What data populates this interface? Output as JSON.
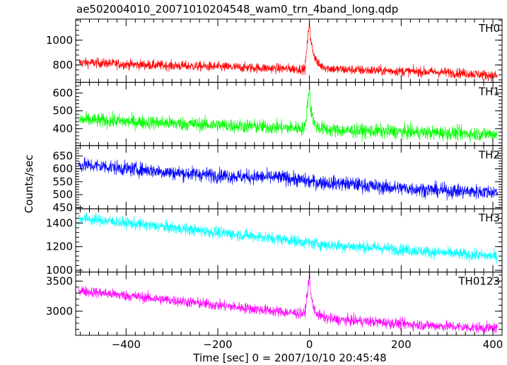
{
  "chart_data": {
    "type": "line",
    "title": "ae502004010_20071010204548_wam0_trn_4band_long.qdp",
    "xlabel": "Time [sec] 0 = 2007/10/10 20:45:48",
    "ylabel": "Counts/sec",
    "xlim": [
      -510,
      420
    ],
    "x_ticks": [
      -400,
      -200,
      0,
      200,
      400
    ],
    "x_tick_labels": [
      "−400",
      "−200",
      "0",
      "200",
      "400"
    ],
    "grid": false,
    "panels": [
      {
        "name": "TH0",
        "color": "#ff0000",
        "ylim": [
          660,
          1170
        ],
        "y_ticks": [
          800,
          1000
        ],
        "y_tick_labels": [
          "800",
          "1000"
        ],
        "series": {
          "x": [
            -500,
            -450,
            -400,
            -350,
            -300,
            -250,
            -200,
            -150,
            -100,
            -50,
            -10,
            0,
            2,
            10,
            20,
            40,
            60,
            100,
            150,
            200,
            250,
            300,
            350,
            400,
            410
          ],
          "y": [
            820,
            815,
            805,
            800,
            795,
            790,
            785,
            780,
            775,
            770,
            768,
            1160,
            1000,
            880,
            800,
            775,
            765,
            760,
            755,
            750,
            745,
            740,
            730,
            715,
            710
          ]
        },
        "noise": 40
      },
      {
        "name": "TH1",
        "color": "#00ff00",
        "ylim": [
          305,
          660
        ],
        "y_ticks": [
          400,
          500,
          600
        ],
        "y_tick_labels": [
          "400",
          "500",
          "600"
        ],
        "series": {
          "x": [
            -500,
            -450,
            -400,
            -350,
            -300,
            -250,
            -200,
            -150,
            -100,
            -50,
            -10,
            0,
            2,
            10,
            20,
            40,
            60,
            100,
            150,
            200,
            250,
            300,
            350,
            400,
            410
          ],
          "y": [
            450,
            445,
            440,
            435,
            430,
            425,
            420,
            415,
            410,
            405,
            402,
            640,
            520,
            430,
            405,
            395,
            390,
            388,
            385,
            382,
            378,
            375,
            372,
            370,
            368
          ]
        },
        "noise": 40
      },
      {
        "name": "TH2",
        "color": "#0000ff",
        "ylim": [
          445,
          690
        ],
        "y_ticks": [
          450,
          500,
          550,
          600,
          650
        ],
        "y_tick_labels": [
          "450",
          "500",
          "550",
          "600",
          "650"
        ],
        "series": {
          "x": [
            -500,
            -450,
            -400,
            -350,
            -300,
            -250,
            -200,
            -150,
            -100,
            -50,
            0,
            50,
            100,
            150,
            200,
            250,
            300,
            350,
            400,
            410
          ],
          "y": [
            615,
            610,
            600,
            595,
            585,
            580,
            575,
            570,
            568,
            565,
            550,
            545,
            540,
            530,
            525,
            520,
            515,
            512,
            510,
            510
          ]
        },
        "noise": 28
      },
      {
        "name": "TH3",
        "color": "#00ffff",
        "ylim": [
          985,
          1520
        ],
        "y_ticks": [
          1000,
          1200,
          1400
        ],
        "y_tick_labels": [
          "1000",
          "1200",
          "1400"
        ],
        "series": {
          "x": [
            -500,
            -450,
            -400,
            -350,
            -300,
            -250,
            -200,
            -150,
            -100,
            -50,
            0,
            50,
            100,
            150,
            200,
            250,
            300,
            350,
            400,
            410
          ],
          "y": [
            1440,
            1420,
            1400,
            1380,
            1360,
            1340,
            1320,
            1300,
            1280,
            1260,
            1230,
            1210,
            1200,
            1190,
            1175,
            1160,
            1145,
            1130,
            1120,
            1115
          ]
        },
        "noise": 50
      },
      {
        "name": "TH0123",
        "color": "#ff00ff",
        "ylim": [
          2600,
          3650
        ],
        "y_ticks": [
          3000,
          3500
        ],
        "y_tick_labels": [
          "3000",
          "3500"
        ],
        "series": {
          "x": [
            -500,
            -450,
            -400,
            -350,
            -300,
            -250,
            -200,
            -150,
            -100,
            -50,
            -10,
            0,
            2,
            10,
            20,
            40,
            60,
            100,
            150,
            200,
            250,
            300,
            350,
            400,
            410
          ],
          "y": [
            3340,
            3300,
            3260,
            3220,
            3180,
            3140,
            3100,
            3060,
            3020,
            2980,
            2960,
            3620,
            3300,
            3030,
            2930,
            2880,
            2860,
            2840,
            2820,
            2790,
            2770,
            2750,
            2730,
            2720,
            2710
          ]
        },
        "noise": 90
      }
    ]
  }
}
